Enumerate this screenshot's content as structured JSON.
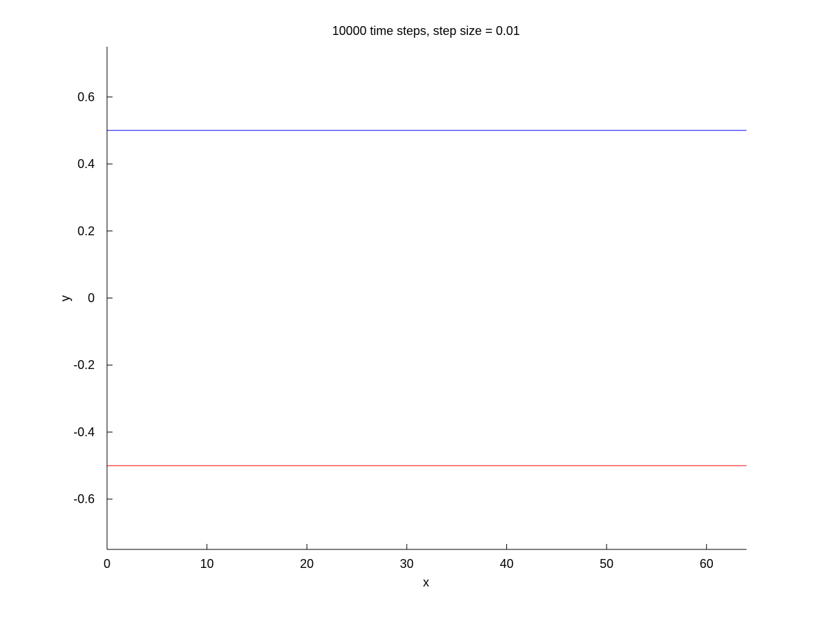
{
  "chart_data": {
    "type": "line",
    "title": "10000 time steps, step size = 0.01",
    "xlabel": "x",
    "ylabel": "y",
    "xlim": [
      0,
      64
    ],
    "ylim": [
      -0.75,
      0.75
    ],
    "xticks": [
      0,
      10,
      20,
      30,
      40,
      50,
      60
    ],
    "yticks": [
      -0.6,
      -0.4,
      -0.2,
      0,
      0.2,
      0.4,
      0.6
    ],
    "xtick_labels": [
      "0",
      "10",
      "20",
      "30",
      "40",
      "50",
      "60"
    ],
    "ytick_labels": [
      "-0.6",
      "-0.4",
      "-0.2",
      "0",
      "0.2",
      "0.4",
      "0.6"
    ],
    "grid": false,
    "legend": "none",
    "box": "left-bottom",
    "series": [
      {
        "x": [
          0,
          64
        ],
        "y": [
          0.5,
          0.5
        ],
        "color": "#0000ff"
      },
      {
        "x": [
          0,
          64
        ],
        "y": [
          -0.5,
          -0.5
        ],
        "color": "#ff0000"
      }
    ]
  }
}
